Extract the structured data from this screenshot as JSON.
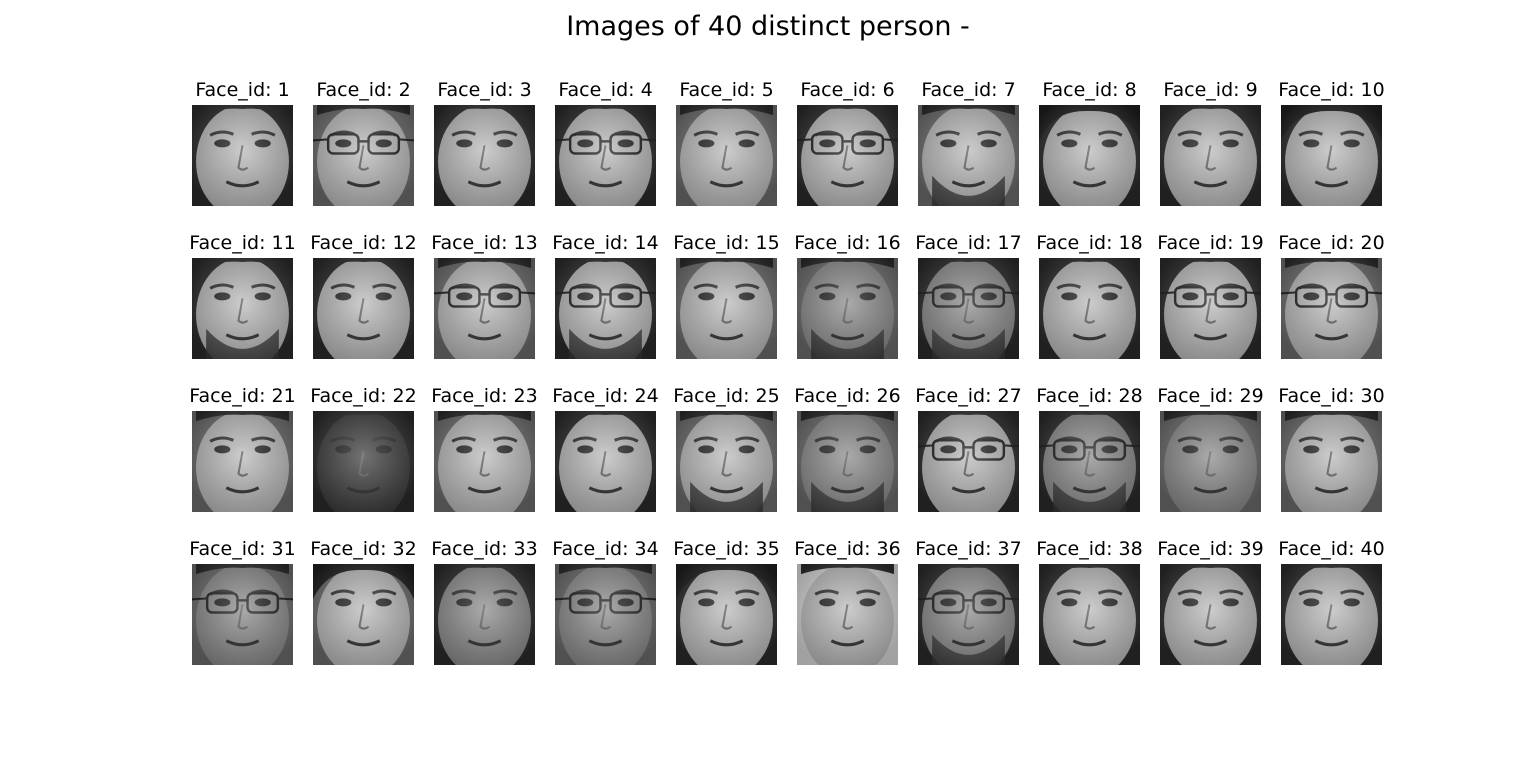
{
  "figure": {
    "title": "Images of 40 distinct person -",
    "rows": 4,
    "cols": 10,
    "label_prefix": "Face_id: ",
    "colormap": "grayscale",
    "faces": [
      {
        "id": 1,
        "label": "Face_id: 1",
        "glasses": false,
        "beard": false,
        "skin": "light",
        "hair": "short",
        "bg": "dark"
      },
      {
        "id": 2,
        "label": "Face_id: 2",
        "glasses": true,
        "beard": false,
        "skin": "light",
        "hair": "short",
        "bg": "mid"
      },
      {
        "id": 3,
        "label": "Face_id: 3",
        "glasses": false,
        "beard": false,
        "skin": "light",
        "hair": "short",
        "bg": "dark"
      },
      {
        "id": 4,
        "label": "Face_id: 4",
        "glasses": true,
        "beard": false,
        "skin": "light",
        "hair": "short",
        "bg": "dark"
      },
      {
        "id": 5,
        "label": "Face_id: 5",
        "glasses": false,
        "beard": false,
        "skin": "light",
        "hair": "short",
        "bg": "mid"
      },
      {
        "id": 6,
        "label": "Face_id: 6",
        "glasses": true,
        "beard": false,
        "skin": "light",
        "hair": "short",
        "bg": "dark"
      },
      {
        "id": 7,
        "label": "Face_id: 7",
        "glasses": false,
        "beard": true,
        "skin": "light",
        "hair": "short",
        "bg": "mid"
      },
      {
        "id": 8,
        "label": "Face_id: 8",
        "glasses": false,
        "beard": false,
        "skin": "light",
        "hair": "long",
        "bg": "dark"
      },
      {
        "id": 9,
        "label": "Face_id: 9",
        "glasses": false,
        "beard": false,
        "skin": "light",
        "hair": "short",
        "bg": "dark"
      },
      {
        "id": 10,
        "label": "Face_id: 10",
        "glasses": false,
        "beard": false,
        "skin": "light",
        "hair": "long",
        "bg": "dark"
      },
      {
        "id": 11,
        "label": "Face_id: 11",
        "glasses": false,
        "beard": true,
        "skin": "light",
        "hair": "short",
        "bg": "dark"
      },
      {
        "id": 12,
        "label": "Face_id: 12",
        "glasses": false,
        "beard": false,
        "skin": "light",
        "hair": "short",
        "bg": "dark"
      },
      {
        "id": 13,
        "label": "Face_id: 13",
        "glasses": true,
        "beard": false,
        "skin": "light",
        "hair": "short",
        "bg": "mid"
      },
      {
        "id": 14,
        "label": "Face_id: 14",
        "glasses": true,
        "beard": true,
        "skin": "light",
        "hair": "short",
        "bg": "dark"
      },
      {
        "id": 15,
        "label": "Face_id: 15",
        "glasses": false,
        "beard": false,
        "skin": "light",
        "hair": "short",
        "bg": "mid"
      },
      {
        "id": 16,
        "label": "Face_id: 16",
        "glasses": false,
        "beard": true,
        "skin": "medium",
        "hair": "short",
        "bg": "mid"
      },
      {
        "id": 17,
        "label": "Face_id: 17",
        "glasses": true,
        "beard": true,
        "skin": "medium",
        "hair": "short",
        "bg": "dark"
      },
      {
        "id": 18,
        "label": "Face_id: 18",
        "glasses": false,
        "beard": false,
        "skin": "light",
        "hair": "short",
        "bg": "dark"
      },
      {
        "id": 19,
        "label": "Face_id: 19",
        "glasses": true,
        "beard": false,
        "skin": "light",
        "hair": "short",
        "bg": "dark"
      },
      {
        "id": 20,
        "label": "Face_id: 20",
        "glasses": true,
        "beard": false,
        "skin": "light",
        "hair": "short",
        "bg": "mid"
      },
      {
        "id": 21,
        "label": "Face_id: 21",
        "glasses": false,
        "beard": false,
        "skin": "light",
        "hair": "short",
        "bg": "mid"
      },
      {
        "id": 22,
        "label": "Face_id: 22",
        "glasses": false,
        "beard": false,
        "skin": "dark",
        "hair": "short",
        "bg": "dark"
      },
      {
        "id": 23,
        "label": "Face_id: 23",
        "glasses": false,
        "beard": false,
        "skin": "light",
        "hair": "short",
        "bg": "mid"
      },
      {
        "id": 24,
        "label": "Face_id: 24",
        "glasses": false,
        "beard": false,
        "skin": "light",
        "hair": "short",
        "bg": "dark"
      },
      {
        "id": 25,
        "label": "Face_id: 25",
        "glasses": false,
        "beard": true,
        "skin": "light",
        "hair": "short",
        "bg": "mid"
      },
      {
        "id": 26,
        "label": "Face_id: 26",
        "glasses": false,
        "beard": true,
        "skin": "medium",
        "hair": "short",
        "bg": "mid"
      },
      {
        "id": 27,
        "label": "Face_id: 27",
        "glasses": true,
        "beard": false,
        "skin": "light",
        "hair": "short",
        "bg": "dark"
      },
      {
        "id": 28,
        "label": "Face_id: 28",
        "glasses": true,
        "beard": true,
        "skin": "medium",
        "hair": "short",
        "bg": "dark"
      },
      {
        "id": 29,
        "label": "Face_id: 29",
        "glasses": false,
        "beard": false,
        "skin": "medium",
        "hair": "short",
        "bg": "mid"
      },
      {
        "id": 30,
        "label": "Face_id: 30",
        "glasses": false,
        "beard": false,
        "skin": "light",
        "hair": "short",
        "bg": "mid"
      },
      {
        "id": 31,
        "label": "Face_id: 31",
        "glasses": true,
        "beard": false,
        "skin": "medium",
        "hair": "short",
        "bg": "mid"
      },
      {
        "id": 32,
        "label": "Face_id: 32",
        "glasses": false,
        "beard": false,
        "skin": "light",
        "hair": "long",
        "bg": "mid"
      },
      {
        "id": 33,
        "label": "Face_id: 33",
        "glasses": false,
        "beard": false,
        "skin": "medium",
        "hair": "short",
        "bg": "dark"
      },
      {
        "id": 34,
        "label": "Face_id: 34",
        "glasses": true,
        "beard": false,
        "skin": "medium",
        "hair": "short",
        "bg": "mid"
      },
      {
        "id": 35,
        "label": "Face_id: 35",
        "glasses": false,
        "beard": false,
        "skin": "light",
        "hair": "long",
        "bg": "dark"
      },
      {
        "id": 36,
        "label": "Face_id: 36",
        "glasses": false,
        "beard": false,
        "skin": "light",
        "hair": "short",
        "bg": "light"
      },
      {
        "id": 37,
        "label": "Face_id: 37",
        "glasses": true,
        "beard": true,
        "skin": "medium",
        "hair": "short",
        "bg": "dark"
      },
      {
        "id": 38,
        "label": "Face_id: 38",
        "glasses": false,
        "beard": false,
        "skin": "light",
        "hair": "short",
        "bg": "dark"
      },
      {
        "id": 39,
        "label": "Face_id: 39",
        "glasses": false,
        "beard": false,
        "skin": "light",
        "hair": "short",
        "bg": "dark"
      },
      {
        "id": 40,
        "label": "Face_id: 40",
        "glasses": false,
        "beard": false,
        "skin": "light",
        "hair": "short",
        "bg": "dark"
      }
    ]
  }
}
